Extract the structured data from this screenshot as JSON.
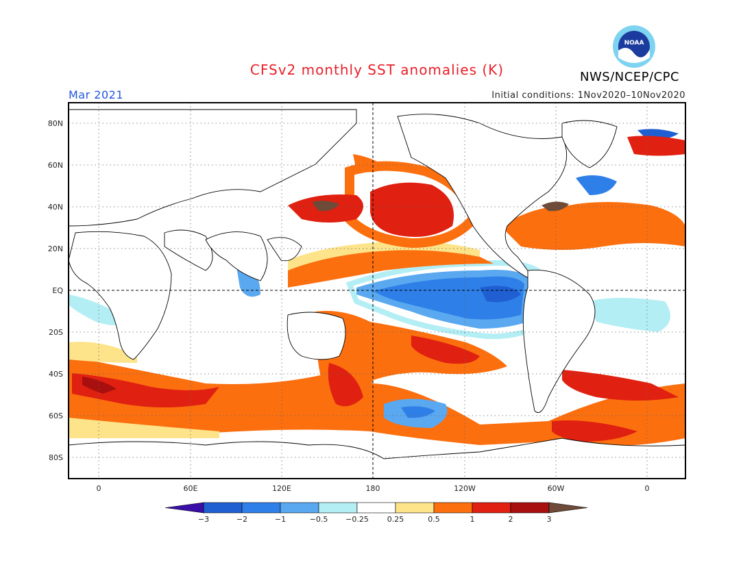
{
  "header": {
    "title": "CFSv2 monthly SST anomalies (K)",
    "agency": "NWS/NCEP/CPC",
    "valid_month": "Mar 2021",
    "initial_conditions": "Initial conditions: 1Nov2020–10Nov2020"
  },
  "axes": {
    "lat_labels": [
      "80N",
      "60N",
      "40N",
      "20N",
      "EQ",
      "20S",
      "40S",
      "60S",
      "80S"
    ],
    "lon_labels": [
      "0",
      "60E",
      "120E",
      "180",
      "120W",
      "60W",
      "0"
    ]
  },
  "colorbar": {
    "levels": [
      "−3",
      "−2",
      "−1",
      "−0.5",
      "−0.25",
      "0.25",
      "0.5",
      "1",
      "2",
      "3"
    ],
    "colors": [
      "#3a0fa8",
      "#1f5fd2",
      "#2e7fe8",
      "#5aa8f0",
      "#b4eef5",
      "#ffffff",
      "#fde48a",
      "#fb6f0f",
      "#e02010",
      "#a80f0f",
      "#6e4a38"
    ]
  },
  "logo": {
    "text": "NOAA"
  }
}
